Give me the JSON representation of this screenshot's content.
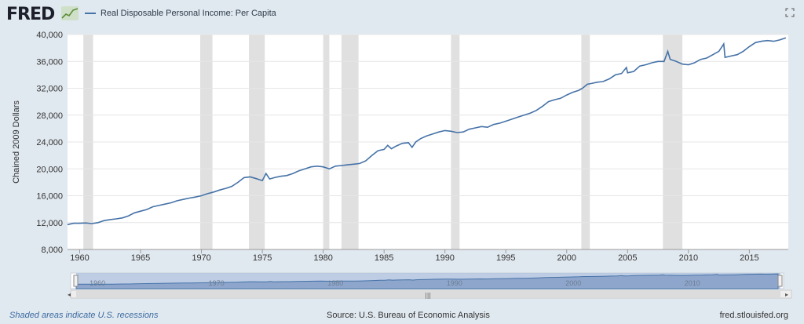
{
  "header": {
    "logo": "FRED"
  },
  "colors": {
    "series": "#4572a7",
    "recession": "#e0e0e0",
    "background": "#e1e9f0"
  },
  "footer": {
    "left": "Shaded areas indicate U.S. recessions",
    "source": "Source: U.S. Bureau of Economic Analysis",
    "right": "fred.stlouisfed.org"
  },
  "chart_data": {
    "type": "line",
    "title": "",
    "xlabel": "",
    "ylabel": "Chained 2009 Dollars",
    "xlim": [
      1959,
      2018.2
    ],
    "ylim": [
      8000,
      40000
    ],
    "yticks": [
      "8,000",
      "12,000",
      "16,000",
      "20,000",
      "24,000",
      "28,000",
      "32,000",
      "36,000",
      "40,000"
    ],
    "xticks": [
      "1960",
      "1965",
      "1970",
      "1975",
      "1980",
      "1985",
      "1990",
      "1995",
      "2000",
      "2005",
      "2010",
      "2015"
    ],
    "navigator_ticks": [
      "1960",
      "1970",
      "1980",
      "1990",
      "2000",
      "2010"
    ],
    "grid": true,
    "recessions": [
      [
        1960.3,
        1961.1
      ],
      [
        1969.9,
        1970.9
      ],
      [
        1973.9,
        1975.2
      ],
      [
        1980.0,
        1980.5
      ],
      [
        1981.5,
        1982.9
      ],
      [
        1990.5,
        1991.2
      ],
      [
        2001.2,
        2001.9
      ],
      [
        2007.9,
        2009.5
      ]
    ],
    "series": [
      {
        "name": "Real Disposable Personal Income: Per Capita",
        "points": [
          [
            1959.0,
            11700
          ],
          [
            1959.5,
            11900
          ],
          [
            1960.0,
            11900
          ],
          [
            1960.5,
            11950
          ],
          [
            1961.0,
            11850
          ],
          [
            1961.5,
            12000
          ],
          [
            1962.0,
            12300
          ],
          [
            1962.5,
            12450
          ],
          [
            1963.0,
            12550
          ],
          [
            1963.5,
            12700
          ],
          [
            1964.0,
            13000
          ],
          [
            1964.5,
            13450
          ],
          [
            1965.0,
            13700
          ],
          [
            1965.5,
            13950
          ],
          [
            1966.0,
            14350
          ],
          [
            1966.5,
            14550
          ],
          [
            1967.0,
            14750
          ],
          [
            1967.5,
            14950
          ],
          [
            1968.0,
            15250
          ],
          [
            1968.5,
            15450
          ],
          [
            1969.0,
            15650
          ],
          [
            1969.5,
            15800
          ],
          [
            1970.0,
            16000
          ],
          [
            1970.5,
            16300
          ],
          [
            1971.0,
            16550
          ],
          [
            1971.5,
            16850
          ],
          [
            1972.0,
            17100
          ],
          [
            1972.5,
            17400
          ],
          [
            1973.0,
            18000
          ],
          [
            1973.5,
            18700
          ],
          [
            1974.0,
            18800
          ],
          [
            1974.5,
            18550
          ],
          [
            1975.0,
            18250
          ],
          [
            1975.3,
            19300
          ],
          [
            1975.6,
            18500
          ],
          [
            1976.0,
            18700
          ],
          [
            1976.5,
            18900
          ],
          [
            1977.0,
            19000
          ],
          [
            1977.5,
            19300
          ],
          [
            1978.0,
            19700
          ],
          [
            1978.5,
            20000
          ],
          [
            1979.0,
            20300
          ],
          [
            1979.5,
            20400
          ],
          [
            1980.0,
            20300
          ],
          [
            1980.5,
            20000
          ],
          [
            1981.0,
            20400
          ],
          [
            1981.5,
            20500
          ],
          [
            1982.0,
            20600
          ],
          [
            1982.5,
            20700
          ],
          [
            1983.0,
            20800
          ],
          [
            1983.5,
            21200
          ],
          [
            1984.0,
            22000
          ],
          [
            1984.5,
            22700
          ],
          [
            1985.0,
            22900
          ],
          [
            1985.3,
            23500
          ],
          [
            1985.6,
            23000
          ],
          [
            1986.0,
            23400
          ],
          [
            1986.5,
            23800
          ],
          [
            1987.0,
            23900
          ],
          [
            1987.3,
            23200
          ],
          [
            1987.6,
            24000
          ],
          [
            1988.0,
            24500
          ],
          [
            1988.5,
            24900
          ],
          [
            1989.0,
            25200
          ],
          [
            1989.5,
            25500
          ],
          [
            1990.0,
            25700
          ],
          [
            1990.5,
            25600
          ],
          [
            1991.0,
            25400
          ],
          [
            1991.5,
            25500
          ],
          [
            1992.0,
            25900
          ],
          [
            1992.5,
            26100
          ],
          [
            1993.0,
            26300
          ],
          [
            1993.5,
            26200
          ],
          [
            1994.0,
            26600
          ],
          [
            1994.5,
            26800
          ],
          [
            1995.0,
            27100
          ],
          [
            1995.5,
            27400
          ],
          [
            1996.0,
            27700
          ],
          [
            1996.5,
            28000
          ],
          [
            1997.0,
            28300
          ],
          [
            1997.5,
            28700
          ],
          [
            1998.0,
            29300
          ],
          [
            1998.5,
            30000
          ],
          [
            1999.0,
            30300
          ],
          [
            1999.5,
            30500
          ],
          [
            2000.0,
            31000
          ],
          [
            2000.5,
            31400
          ],
          [
            2001.0,
            31700
          ],
          [
            2001.3,
            32000
          ],
          [
            2001.7,
            32600
          ],
          [
            2002.0,
            32700
          ],
          [
            2002.5,
            32900
          ],
          [
            2003.0,
            33000
          ],
          [
            2003.5,
            33400
          ],
          [
            2004.0,
            34000
          ],
          [
            2004.5,
            34200
          ],
          [
            2004.9,
            35100
          ],
          [
            2005.0,
            34300
          ],
          [
            2005.5,
            34500
          ],
          [
            2006.0,
            35300
          ],
          [
            2006.5,
            35500
          ],
          [
            2007.0,
            35800
          ],
          [
            2007.5,
            36000
          ],
          [
            2008.0,
            36000
          ],
          [
            2008.3,
            37500
          ],
          [
            2008.5,
            36300
          ],
          [
            2009.0,
            36000
          ],
          [
            2009.5,
            35600
          ],
          [
            2010.0,
            35500
          ],
          [
            2010.5,
            35800
          ],
          [
            2011.0,
            36300
          ],
          [
            2011.5,
            36500
          ],
          [
            2012.0,
            37000
          ],
          [
            2012.5,
            37500
          ],
          [
            2012.9,
            38600
          ],
          [
            2013.0,
            36600
          ],
          [
            2013.5,
            36800
          ],
          [
            2014.0,
            37000
          ],
          [
            2014.5,
            37500
          ],
          [
            2015.0,
            38200
          ],
          [
            2015.5,
            38800
          ],
          [
            2016.0,
            39000
          ],
          [
            2016.5,
            39100
          ],
          [
            2017.0,
            39000
          ],
          [
            2017.5,
            39200
          ],
          [
            2018.0,
            39500
          ]
        ]
      }
    ]
  }
}
